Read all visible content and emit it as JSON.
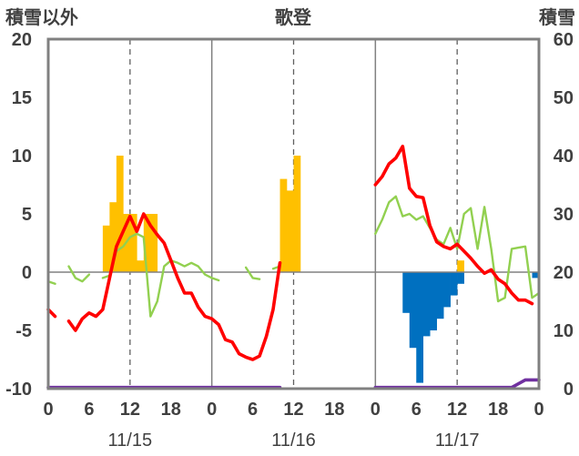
{
  "chart_data": {
    "type": "bar+line",
    "title": "歌登",
    "left_axis_label": "積雪以外",
    "right_axis_label": "積雪",
    "left_ylim": [
      -10,
      20
    ],
    "left_ticks": [
      "20",
      "15",
      "10",
      "5",
      "0",
      "-5",
      "-10"
    ],
    "right_ylim": [
      0,
      60
    ],
    "right_ticks": [
      "60",
      "50",
      "40",
      "30",
      "20",
      "10",
      "0"
    ],
    "x_tick_labels": [
      "0",
      "6",
      "12",
      "18",
      "0",
      "6",
      "12",
      "18",
      "0",
      "6",
      "12",
      "18",
      "0"
    ],
    "date_labels": [
      "11/15",
      "11/16",
      "11/17"
    ],
    "grid": "dashed verticals at 12h, solid day separators",
    "colors": {
      "temperature": "#ff0000",
      "wind": "#92d050",
      "snowfall": "#ffc000",
      "snow_change": "#0070c0",
      "snow_depth": "#7030a0",
      "axis": "#808080"
    },
    "series": [],
    "snowfall_bars": [
      {
        "h": 8,
        "v": 4
      },
      {
        "h": 9,
        "v": 6
      },
      {
        "h": 10,
        "v": 10
      },
      {
        "h": 11,
        "v": 5
      },
      {
        "h": 12,
        "v": 5
      },
      {
        "h": 13,
        "v": 1
      },
      {
        "h": 14,
        "v": 5
      },
      {
        "h": 15,
        "v": 5
      },
      {
        "h": 34,
        "v": 8
      },
      {
        "h": 35,
        "v": 7
      },
      {
        "h": 36,
        "v": 10
      },
      {
        "h": 60,
        "v": 1
      }
    ],
    "snow_change_bars": [
      {
        "h": 52,
        "v": -3.5
      },
      {
        "h": 53,
        "v": -6.5
      },
      {
        "h": 54,
        "v": -9.5
      },
      {
        "h": 55,
        "v": -5.5
      },
      {
        "h": 56,
        "v": -5
      },
      {
        "h": 57,
        "v": -4
      },
      {
        "h": 58,
        "v": -3
      },
      {
        "h": 59,
        "v": -2
      },
      {
        "h": 60,
        "v": -1
      },
      {
        "h": 71,
        "v": -0.5
      }
    ],
    "temperature": [
      [
        [
          0,
          -3.2
        ],
        [
          1,
          -3.8
        ]
      ],
      [
        [
          3,
          -4.2
        ],
        [
          4,
          -5.0
        ],
        [
          5,
          -4.0
        ],
        [
          6,
          -3.5
        ],
        [
          7,
          -3.8
        ],
        [
          8,
          -3.2
        ],
        [
          9,
          -0.5
        ],
        [
          10,
          2.2
        ],
        [
          11,
          3.5
        ],
        [
          12,
          4.8
        ],
        [
          13,
          3.5
        ],
        [
          14,
          5.0
        ],
        [
          15,
          4.0
        ],
        [
          16,
          3.2
        ],
        [
          17,
          2.5
        ],
        [
          18,
          1.0
        ],
        [
          19,
          -0.5
        ],
        [
          20,
          -1.8
        ],
        [
          21,
          -1.8
        ],
        [
          22,
          -3.0
        ],
        [
          23,
          -3.8
        ],
        [
          24,
          -4.0
        ],
        [
          25,
          -4.5
        ],
        [
          26,
          -5.8
        ],
        [
          27,
          -6.0
        ],
        [
          28,
          -7.0
        ],
        [
          29,
          -7.3
        ],
        [
          30,
          -7.5
        ],
        [
          31,
          -7.2
        ],
        [
          32,
          -5.5
        ],
        [
          33,
          -3.2
        ],
        [
          34,
          0.8
        ]
      ],
      [
        [
          48,
          7.5
        ],
        [
          49,
          8.2
        ],
        [
          50,
          9.3
        ],
        [
          51,
          9.8
        ],
        [
          52,
          10.8
        ],
        [
          53,
          7.2
        ],
        [
          54,
          6.5
        ],
        [
          55,
          6.4
        ],
        [
          56,
          4.0
        ],
        [
          57,
          2.6
        ],
        [
          58,
          2.2
        ],
        [
          59,
          2.0
        ],
        [
          60,
          2.4
        ],
        [
          61,
          1.8
        ],
        [
          62,
          1.2
        ],
        [
          63,
          0.5
        ],
        [
          64,
          -0.1
        ],
        [
          65,
          0.2
        ],
        [
          66,
          -0.6
        ],
        [
          67,
          -1.0
        ],
        [
          68,
          -1.8
        ],
        [
          69,
          -2.4
        ],
        [
          70,
          -2.4
        ],
        [
          71,
          -2.7
        ]
      ]
    ],
    "wind": [
      [
        [
          0,
          -0.8
        ],
        [
          1,
          -1.0
        ]
      ],
      [
        [
          3,
          0.5
        ],
        [
          4,
          -0.5
        ],
        [
          5,
          -0.8
        ],
        [
          6,
          -0.2
        ]
      ],
      [
        [
          8,
          -0.5
        ],
        [
          9,
          -0.3
        ],
        [
          10,
          1.8
        ],
        [
          11,
          2.2
        ],
        [
          12,
          3.0
        ],
        [
          13,
          3.3
        ],
        [
          14,
          3.0
        ],
        [
          15,
          -3.8
        ],
        [
          16,
          -2.5
        ],
        [
          17,
          0.5
        ],
        [
          18,
          1.0
        ],
        [
          19,
          0.8
        ],
        [
          20,
          0.5
        ],
        [
          21,
          0.8
        ],
        [
          22,
          0.5
        ],
        [
          23,
          -0.2
        ],
        [
          24,
          -0.5
        ],
        [
          25,
          -0.7
        ]
      ],
      [
        [
          29,
          0.4
        ],
        [
          30,
          -0.5
        ],
        [
          31,
          -0.6
        ]
      ],
      [
        [
          33,
          0.3
        ],
        [
          34,
          0.5
        ]
      ],
      [
        [
          48,
          3.3
        ],
        [
          49,
          4.5
        ],
        [
          50,
          6.0
        ],
        [
          51,
          6.5
        ],
        [
          52,
          4.8
        ],
        [
          53,
          5.0
        ],
        [
          54,
          4.5
        ],
        [
          55,
          4.8
        ],
        [
          56,
          3.8
        ],
        [
          57,
          2.8
        ],
        [
          58,
          2.4
        ],
        [
          59,
          3.8
        ],
        [
          60,
          2.0
        ],
        [
          61,
          5.0
        ],
        [
          62,
          5.5
        ],
        [
          63,
          2.0
        ],
        [
          64,
          5.6
        ],
        [
          65,
          2.0
        ],
        [
          66,
          -2.5
        ],
        [
          67,
          -2.2
        ],
        [
          68,
          2.0
        ],
        [
          69,
          2.1
        ],
        [
          70,
          2.2
        ],
        [
          71,
          -2.2
        ],
        [
          72,
          -1.8
        ]
      ]
    ],
    "snow_depth": [
      [
        [
          0,
          0.2
        ],
        [
          34,
          0.2
        ]
      ],
      [
        [
          48,
          0.2
        ],
        [
          68,
          0.2
        ],
        [
          70,
          1.5
        ],
        [
          72,
          1.5
        ]
      ]
    ]
  }
}
